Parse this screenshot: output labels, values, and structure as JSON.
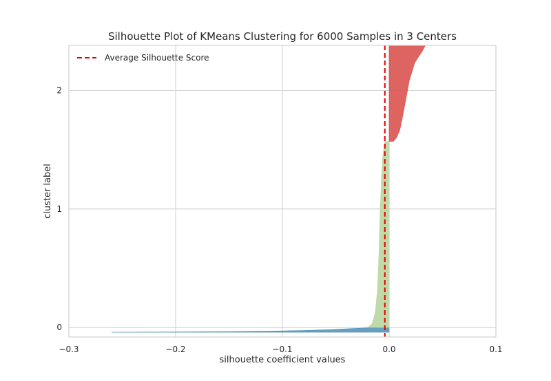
{
  "chart_data": {
    "type": "area",
    "title": "Silhouette Plot of KMeans Clustering for 6000 Samples in 3 Centers",
    "xlabel": "silhouette coefficient values",
    "ylabel": "cluster label",
    "xlim": [
      -0.3,
      0.1
    ],
    "xticks": [
      -0.3,
      -0.2,
      -0.1,
      0.0,
      0.1
    ],
    "xtick_labels": [
      "−0.3",
      "−0.2",
      "−0.1",
      "0.0",
      "0.1"
    ],
    "yticks": [
      0,
      1,
      2
    ],
    "ytick_labels": [
      "0",
      "1",
      "2"
    ],
    "grid": true,
    "legend_position": "top-left",
    "average_silhouette_score": -0.004,
    "legend": {
      "label": "Average Silhouette Score",
      "color": "#e60000"
    },
    "series": [
      {
        "cluster": 0,
        "color": "#4c8fb4",
        "profile": [
          [
            0.0,
            -0.26
          ],
          [
            0.06,
            -0.2
          ],
          [
            0.14,
            -0.15
          ],
          [
            0.24,
            -0.11
          ],
          [
            0.38,
            -0.08
          ],
          [
            0.56,
            -0.055
          ],
          [
            0.78,
            -0.035
          ],
          [
            0.92,
            -0.02
          ],
          [
            1.0,
            -0.005
          ]
        ]
      },
      {
        "cluster": 1,
        "color": "#b9d7a0",
        "profile": [
          [
            0.0,
            -0.02
          ],
          [
            0.02,
            -0.016
          ],
          [
            0.08,
            -0.013
          ],
          [
            0.2,
            -0.011
          ],
          [
            0.4,
            -0.0095
          ],
          [
            0.62,
            -0.0085
          ],
          [
            0.8,
            -0.0072
          ],
          [
            0.92,
            -0.006
          ],
          [
            1.0,
            -0.004
          ]
        ]
      },
      {
        "cluster": 2,
        "color": "#d9534f",
        "profile": [
          [
            0.0,
            0.004
          ],
          [
            0.04,
            0.007
          ],
          [
            0.12,
            0.01
          ],
          [
            0.28,
            0.013
          ],
          [
            0.46,
            0.016
          ],
          [
            0.64,
            0.019
          ],
          [
            0.82,
            0.024
          ],
          [
            0.94,
            0.031
          ],
          [
            1.0,
            0.034
          ]
        ]
      }
    ]
  }
}
